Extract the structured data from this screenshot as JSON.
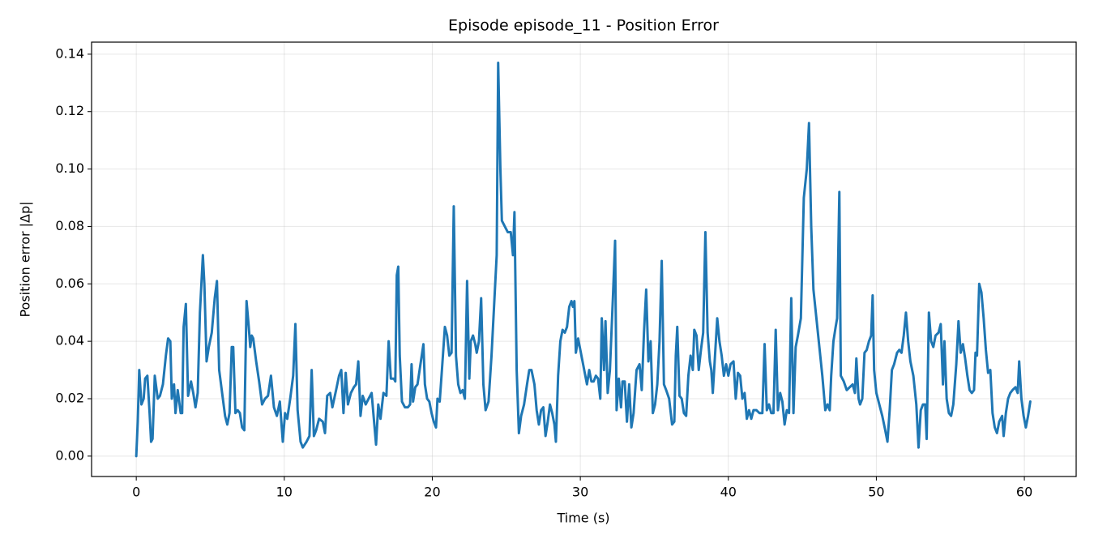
{
  "chart_data": {
    "type": "line",
    "title": "Episode episode_11 - Position Error",
    "x_label": "Time (s)",
    "y_label": "Position error |Δp|",
    "xlim": [
      -3.02,
      63.5
    ],
    "ylim": [
      -0.0071,
      0.1442
    ],
    "xticks": [
      0,
      10,
      20,
      30,
      40,
      50,
      60
    ],
    "yticks": [
      {
        "value": 0,
        "label": "0.00"
      },
      {
        "value": 0.02,
        "label": "0.02"
      },
      {
        "value": 0.04,
        "label": "0.04"
      },
      {
        "value": 0.06,
        "label": "0.06"
      },
      {
        "value": 0.08,
        "label": "0.08"
      },
      {
        "value": 0.1,
        "label": "0.10"
      },
      {
        "value": 0.12,
        "label": "0.12"
      },
      {
        "value": 0.14,
        "label": "0.14"
      }
    ],
    "grid": true,
    "x": [
      0,
      0.1,
      0.2,
      0.35,
      0.5,
      0.6,
      0.75,
      0.9,
      1.0,
      1.1,
      1.25,
      1.45,
      1.6,
      1.8,
      2.0,
      2.15,
      2.3,
      2.4,
      2.55,
      2.65,
      2.8,
      3.0,
      3.1,
      3.2,
      3.35,
      3.5,
      3.7,
      3.85,
      4.0,
      4.15,
      4.3,
      4.5,
      4.6,
      4.75,
      4.9,
      5.1,
      5.3,
      5.45,
      5.6,
      5.8,
      6.0,
      6.15,
      6.3,
      6.45,
      6.55,
      6.7,
      6.85,
      7.0,
      7.15,
      7.3,
      7.45,
      7.6,
      7.7,
      7.8,
      7.9,
      8.1,
      8.3,
      8.5,
      8.7,
      8.9,
      9.1,
      9.3,
      9.5,
      9.7,
      9.9,
      10.05,
      10.2,
      10.4,
      10.6,
      10.75,
      10.9,
      11.1,
      11.25,
      11.5,
      11.7,
      11.85,
      12.0,
      12.15,
      12.35,
      12.6,
      12.75,
      12.9,
      13.1,
      13.25,
      13.5,
      13.7,
      13.85,
      14.0,
      14.15,
      14.3,
      14.5,
      14.7,
      14.85,
      15.0,
      15.15,
      15.3,
      15.5,
      15.7,
      15.9,
      16.0,
      16.2,
      16.35,
      16.5,
      16.7,
      16.9,
      17.05,
      17.2,
      17.4,
      17.5,
      17.6,
      17.7,
      17.8,
      17.95,
      18.15,
      18.35,
      18.5,
      18.6,
      18.7,
      18.85,
      19.0,
      19.2,
      19.4,
      19.5,
      19.65,
      19.8,
      19.95,
      20.1,
      20.25,
      20.35,
      20.5,
      20.65,
      20.85,
      21.0,
      21.15,
      21.3,
      21.45,
      21.6,
      21.75,
      21.9,
      22.05,
      22.2,
      22.35,
      22.5,
      22.6,
      22.75,
      22.9,
      23.0,
      23.15,
      23.3,
      23.45,
      23.6,
      23.8,
      24.0,
      24.2,
      24.35,
      24.45,
      24.6,
      24.7,
      24.9,
      25.1,
      25.3,
      25.45,
      25.55,
      25.7,
      25.85,
      26.0,
      26.2,
      26.4,
      26.55,
      26.7,
      26.9,
      27.05,
      27.2,
      27.35,
      27.5,
      27.65,
      27.8,
      27.95,
      28.1,
      28.25,
      28.35,
      28.5,
      28.65,
      28.8,
      28.95,
      29.1,
      29.25,
      29.4,
      29.5,
      29.6,
      29.7,
      29.85,
      30.0,
      30.15,
      30.3,
      30.45,
      30.6,
      30.75,
      30.9,
      31.05,
      31.2,
      31.35,
      31.45,
      31.6,
      31.7,
      31.85,
      32.0,
      32.2,
      32.35,
      32.45,
      32.6,
      32.75,
      32.85,
      33.0,
      33.15,
      33.3,
      33.45,
      33.6,
      33.8,
      34.0,
      34.15,
      34.3,
      34.45,
      34.6,
      34.75,
      34.9,
      35.05,
      35.2,
      35.35,
      35.5,
      35.65,
      35.8,
      36.0,
      36.2,
      36.35,
      36.45,
      36.55,
      36.7,
      36.85,
      37.0,
      37.15,
      37.3,
      37.45,
      37.6,
      37.7,
      37.85,
      38.0,
      38.15,
      38.3,
      38.45,
      38.6,
      38.75,
      38.85,
      38.95,
      39.1,
      39.25,
      39.4,
      39.55,
      39.7,
      39.85,
      40.0,
      40.15,
      40.35,
      40.5,
      40.65,
      40.8,
      40.95,
      41.1,
      41.25,
      41.4,
      41.55,
      41.7,
      41.9,
      42.1,
      42.3,
      42.45,
      42.6,
      42.75,
      42.9,
      43.05,
      43.2,
      43.35,
      43.5,
      43.65,
      43.8,
      43.95,
      44.1,
      44.25,
      44.4,
      44.55,
      44.7,
      44.9,
      45.1,
      45.3,
      45.45,
      45.6,
      45.75,
      45.95,
      46.15,
      46.35,
      46.55,
      46.7,
      46.85,
      46.95,
      47.1,
      47.25,
      47.35,
      47.5,
      47.6,
      47.8,
      48.0,
      48.2,
      48.4,
      48.55,
      48.65,
      48.8,
      48.9,
      49.05,
      49.2,
      49.35,
      49.5,
      49.65,
      49.75,
      49.85,
      50.0,
      50.2,
      50.4,
      50.6,
      50.75,
      50.9,
      51.05,
      51.2,
      51.4,
      51.55,
      51.7,
      51.85,
      52.0,
      52.15,
      52.3,
      52.5,
      52.7,
      52.85,
      53.0,
      53.15,
      53.3,
      53.4,
      53.55,
      53.7,
      53.85,
      54.0,
      54.2,
      54.35,
      54.5,
      54.6,
      54.75,
      54.9,
      55.05,
      55.2,
      55.4,
      55.55,
      55.7,
      55.85,
      56.0,
      56.15,
      56.3,
      56.45,
      56.6,
      56.7,
      56.8,
      56.95,
      57.1,
      57.25,
      57.4,
      57.55,
      57.7,
      57.85,
      58.0,
      58.15,
      58.3,
      58.5,
      58.6,
      58.75,
      58.9,
      59.05,
      59.2,
      59.4,
      59.55,
      59.65,
      59.8,
      59.95,
      60.1,
      60.25,
      60.4
    ],
    "series": [
      {
        "color": "#1f77b4",
        "values": [
          0,
          0.012,
          0.03,
          0.018,
          0.02,
          0.027,
          0.028,
          0.015,
          0.005,
          0.006,
          0.028,
          0.02,
          0.021,
          0.025,
          0.035,
          0.041,
          0.04,
          0.02,
          0.025,
          0.015,
          0.023,
          0.015,
          0.015,
          0.045,
          0.053,
          0.021,
          0.026,
          0.022,
          0.017,
          0.022,
          0.05,
          0.07,
          0.06,
          0.033,
          0.038,
          0.043,
          0.055,
          0.061,
          0.03,
          0.022,
          0.014,
          0.011,
          0.015,
          0.038,
          0.038,
          0.015,
          0.016,
          0.015,
          0.01,
          0.009,
          0.054,
          0.045,
          0.038,
          0.042,
          0.041,
          0.033,
          0.026,
          0.018,
          0.02,
          0.021,
          0.028,
          0.017,
          0.014,
          0.019,
          0.005,
          0.015,
          0.013,
          0.02,
          0.028,
          0.046,
          0.016,
          0.005,
          0.003,
          0.005,
          0.007,
          0.03,
          0.007,
          0.009,
          0.013,
          0.012,
          0.008,
          0.021,
          0.022,
          0.017,
          0.023,
          0.028,
          0.03,
          0.015,
          0.029,
          0.018,
          0.022,
          0.024,
          0.025,
          0.033,
          0.014,
          0.021,
          0.018,
          0.02,
          0.022,
          0.016,
          0.004,
          0.018,
          0.013,
          0.022,
          0.021,
          0.04,
          0.027,
          0.027,
          0.026,
          0.063,
          0.066,
          0.035,
          0.019,
          0.017,
          0.017,
          0.018,
          0.032,
          0.019,
          0.024,
          0.025,
          0.032,
          0.039,
          0.025,
          0.02,
          0.019,
          0.015,
          0.012,
          0.01,
          0.02,
          0.019,
          0.03,
          0.045,
          0.042,
          0.035,
          0.036,
          0.087,
          0.035,
          0.025,
          0.022,
          0.023,
          0.02,
          0.061,
          0.027,
          0.04,
          0.042,
          0.039,
          0.036,
          0.04,
          0.055,
          0.025,
          0.016,
          0.019,
          0.035,
          0.055,
          0.07,
          0.137,
          0.1,
          0.082,
          0.08,
          0.078,
          0.078,
          0.07,
          0.085,
          0.03,
          0.008,
          0.014,
          0.018,
          0.025,
          0.03,
          0.03,
          0.025,
          0.016,
          0.011,
          0.016,
          0.017,
          0.007,
          0.012,
          0.018,
          0.015,
          0.011,
          0.005,
          0.028,
          0.04,
          0.044,
          0.043,
          0.045,
          0.052,
          0.054,
          0.052,
          0.054,
          0.036,
          0.041,
          0.037,
          0.033,
          0.029,
          0.025,
          0.03,
          0.026,
          0.026,
          0.028,
          0.027,
          0.02,
          0.048,
          0.03,
          0.047,
          0.022,
          0.03,
          0.055,
          0.075,
          0.016,
          0.027,
          0.017,
          0.026,
          0.026,
          0.012,
          0.025,
          0.01,
          0.015,
          0.03,
          0.032,
          0.023,
          0.043,
          0.058,
          0.033,
          0.04,
          0.015,
          0.018,
          0.025,
          0.04,
          0.068,
          0.025,
          0.023,
          0.02,
          0.011,
          0.012,
          0.035,
          0.045,
          0.021,
          0.02,
          0.015,
          0.014,
          0.028,
          0.035,
          0.03,
          0.044,
          0.042,
          0.03,
          0.037,
          0.043,
          0.078,
          0.043,
          0.033,
          0.03,
          0.022,
          0.035,
          0.048,
          0.04,
          0.035,
          0.028,
          0.032,
          0.028,
          0.032,
          0.033,
          0.02,
          0.029,
          0.028,
          0.02,
          0.022,
          0.013,
          0.016,
          0.013,
          0.016,
          0.016,
          0.015,
          0.015,
          0.039,
          0.016,
          0.018,
          0.015,
          0.015,
          0.044,
          0.016,
          0.022,
          0.019,
          0.011,
          0.016,
          0.015,
          0.055,
          0.015,
          0.038,
          0.042,
          0.048,
          0.09,
          0.1,
          0.116,
          0.08,
          0.058,
          0.048,
          0.038,
          0.028,
          0.016,
          0.018,
          0.016,
          0.028,
          0.04,
          0.045,
          0.048,
          0.092,
          0.028,
          0.026,
          0.023,
          0.024,
          0.025,
          0.022,
          0.034,
          0.02,
          0.018,
          0.02,
          0.036,
          0.037,
          0.04,
          0.042,
          0.056,
          0.03,
          0.022,
          0.018,
          0.014,
          0.009,
          0.005,
          0.016,
          0.03,
          0.032,
          0.036,
          0.037,
          0.036,
          0.042,
          0.05,
          0.04,
          0.033,
          0.028,
          0.018,
          0.003,
          0.016,
          0.018,
          0.018,
          0.006,
          0.05,
          0.04,
          0.038,
          0.042,
          0.043,
          0.046,
          0.025,
          0.04,
          0.02,
          0.015,
          0.014,
          0.018,
          0.032,
          0.047,
          0.036,
          0.039,
          0.034,
          0.028,
          0.023,
          0.022,
          0.023,
          0.036,
          0.035,
          0.06,
          0.057,
          0.048,
          0.037,
          0.029,
          0.03,
          0.015,
          0.01,
          0.008,
          0.012,
          0.014,
          0.007,
          0.015,
          0.02,
          0.022,
          0.023,
          0.024,
          0.022,
          0.033,
          0.02,
          0.014,
          0.01,
          0.014,
          0.019
        ]
      }
    ]
  }
}
